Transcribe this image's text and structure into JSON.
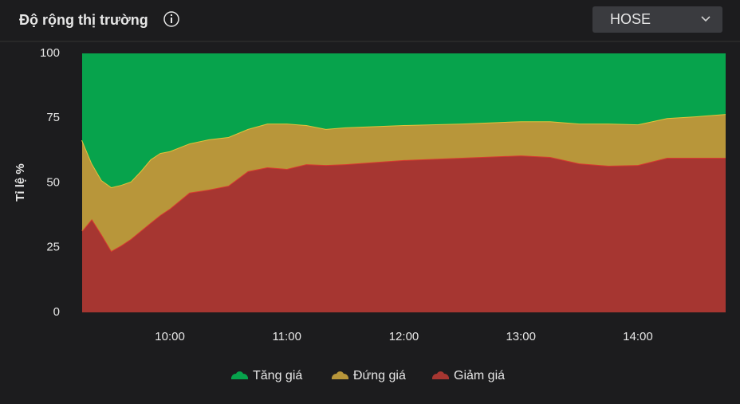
{
  "header": {
    "title": "Độ rộng thị trường",
    "exchange": "HOSE"
  },
  "chart_data": {
    "type": "stacked-area",
    "ylabel": "Tỉ lệ %",
    "x": [
      555,
      560,
      565,
      570,
      575,
      580,
      585,
      590,
      595,
      600,
      610,
      620,
      630,
      640,
      650,
      660,
      670,
      680,
      690,
      720,
      750,
      780,
      795,
      810,
      825,
      840,
      855,
      870,
      885
    ],
    "xlim": [
      555,
      885
    ],
    "xticks": [
      {
        "value": 600,
        "label": "10:00"
      },
      {
        "value": 660,
        "label": "11:00"
      },
      {
        "value": 720,
        "label": "12:00"
      },
      {
        "value": 780,
        "label": "13:00"
      },
      {
        "value": 840,
        "label": "14:00"
      }
    ],
    "ylim": [
      0,
      100
    ],
    "yticks": [
      0,
      25,
      50,
      75,
      100
    ],
    "grid": false,
    "legend": "bottom",
    "series": [
      {
        "name": "Tăng giá",
        "color": "#07a34c",
        "values": [
          33.5,
          42.5,
          49,
          51.7,
          50.8,
          49.5,
          45.5,
          41,
          38.5,
          37.8,
          34.8,
          33.2,
          32.3,
          29.2,
          27.1,
          27.1,
          27.7,
          29.2,
          28.6,
          27.7,
          27.1,
          26.2,
          26.2,
          27.1,
          27.1,
          27.4,
          25,
          24.3,
          23.4
        ]
      },
      {
        "name": "Đứng giá",
        "color": "#b8963a",
        "values": [
          35.1,
          21.5,
          21,
          24.6,
          23.4,
          22.2,
          23.1,
          24.5,
          24,
          22.2,
          19,
          19.4,
          18.8,
          16.3,
          16.9,
          17.5,
          15.1,
          13.9,
          14.2,
          13.5,
          13.2,
          13.2,
          13.8,
          15.4,
          16.3,
          15.7,
          15.3,
          16,
          16.9
        ]
      },
      {
        "name": "Giảm giá",
        "color": "#a63631",
        "values": [
          31.4,
          36,
          30,
          23.7,
          25.8,
          28.3,
          31.4,
          34.5,
          37.5,
          40,
          46.2,
          47.4,
          48.9,
          54.5,
          56,
          55.4,
          57.2,
          56.9,
          57.2,
          58.8,
          59.7,
          60.6,
          60,
          57.5,
          56.6,
          56.9,
          59.7,
          59.7,
          59.7
        ]
      }
    ]
  }
}
